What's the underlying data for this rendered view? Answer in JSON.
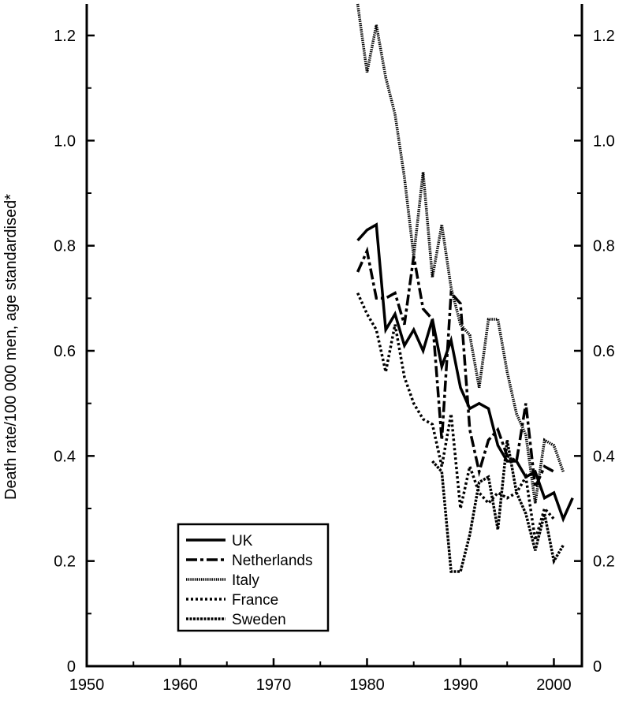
{
  "chart_data": {
    "type": "line",
    "title": "",
    "xlabel": "",
    "ylabel": "Death rate/100 000 men, age standardised*",
    "xlim": [
      1950,
      2003
    ],
    "ylim": [
      0,
      1.26
    ],
    "x_ticks": [
      1950,
      1960,
      1970,
      1980,
      1990,
      2000
    ],
    "x_tick_labels": [
      "1950",
      "1960",
      "1970",
      "1980",
      "1990",
      "2000"
    ],
    "y_ticks": [
      0,
      0.2,
      0.4,
      0.6,
      0.8,
      1.0,
      1.2
    ],
    "y_tick_labels": [
      "0",
      "0.2",
      "0.4",
      "0.6",
      "0.8",
      "1.0",
      "1.2"
    ],
    "right_axis_mirrored": true,
    "grid": false,
    "legend_position": "bottom-left",
    "series": [
      {
        "name": "UK",
        "style": "solid",
        "x": [
          1979,
          1980,
          1981,
          1982,
          1983,
          1984,
          1985,
          1986,
          1987,
          1988,
          1989,
          1990,
          1991,
          1992,
          1993,
          1994,
          1995,
          1996,
          1997,
          1998,
          1999,
          2000,
          2001,
          2002
        ],
        "y": [
          0.81,
          0.83,
          0.84,
          0.64,
          0.67,
          0.61,
          0.64,
          0.6,
          0.66,
          0.57,
          0.62,
          0.53,
          0.49,
          0.5,
          0.49,
          0.42,
          0.39,
          0.39,
          0.36,
          0.37,
          0.32,
          0.33,
          0.28,
          0.32
        ]
      },
      {
        "name": "Netherlands",
        "style": "dash-dot",
        "x": [
          1979,
          1980,
          1981,
          1982,
          1983,
          1984,
          1985,
          1986,
          1987,
          1988,
          1989,
          1990,
          1991,
          1992,
          1993,
          1994,
          1995,
          1996,
          1997,
          1998,
          1999,
          2000
        ],
        "y": [
          0.75,
          0.79,
          0.7,
          0.7,
          0.71,
          0.65,
          0.78,
          0.68,
          0.66,
          0.43,
          0.71,
          0.69,
          0.45,
          0.37,
          0.43,
          0.45,
          0.4,
          0.39,
          0.5,
          0.34,
          0.38,
          0.37
        ]
      },
      {
        "name": "Italy",
        "style": "dense-dot",
        "x": [
          1979,
          1980,
          1981,
          1982,
          1983,
          1984,
          1985,
          1986,
          1987,
          1988,
          1989,
          1990,
          1991,
          1992,
          1993,
          1994,
          1995,
          1996,
          1997,
          1998,
          1999,
          2000,
          2001
        ],
        "y": [
          1.26,
          1.13,
          1.22,
          1.12,
          1.05,
          0.93,
          0.78,
          0.94,
          0.74,
          0.84,
          0.72,
          0.65,
          0.63,
          0.53,
          0.66,
          0.66,
          0.56,
          0.48,
          0.44,
          0.31,
          0.43,
          0.42,
          0.37
        ]
      },
      {
        "name": "France",
        "style": "dotted",
        "x": [
          1979,
          1980,
          1981,
          1982,
          1983,
          1984,
          1985,
          1986,
          1987,
          1988,
          1989,
          1990,
          1991,
          1992,
          1993,
          1994,
          1995,
          1996,
          1997,
          1998,
          1999,
          2000
        ],
        "y": [
          0.71,
          0.67,
          0.64,
          0.56,
          0.65,
          0.55,
          0.5,
          0.47,
          0.46,
          0.38,
          0.48,
          0.3,
          0.38,
          0.33,
          0.31,
          0.33,
          0.32,
          0.33,
          0.36,
          0.24,
          0.3,
          0.28
        ]
      },
      {
        "name": "Sweden",
        "style": "dense-dash",
        "x": [
          1987,
          1988,
          1989,
          1990,
          1991,
          1992,
          1993,
          1994,
          1995,
          1996,
          1997,
          1998,
          1999,
          2000,
          2001
        ],
        "y": [
          0.39,
          0.37,
          0.18,
          0.18,
          0.25,
          0.35,
          0.36,
          0.26,
          0.43,
          0.33,
          0.29,
          0.22,
          0.29,
          0.2,
          0.23
        ]
      }
    ]
  }
}
